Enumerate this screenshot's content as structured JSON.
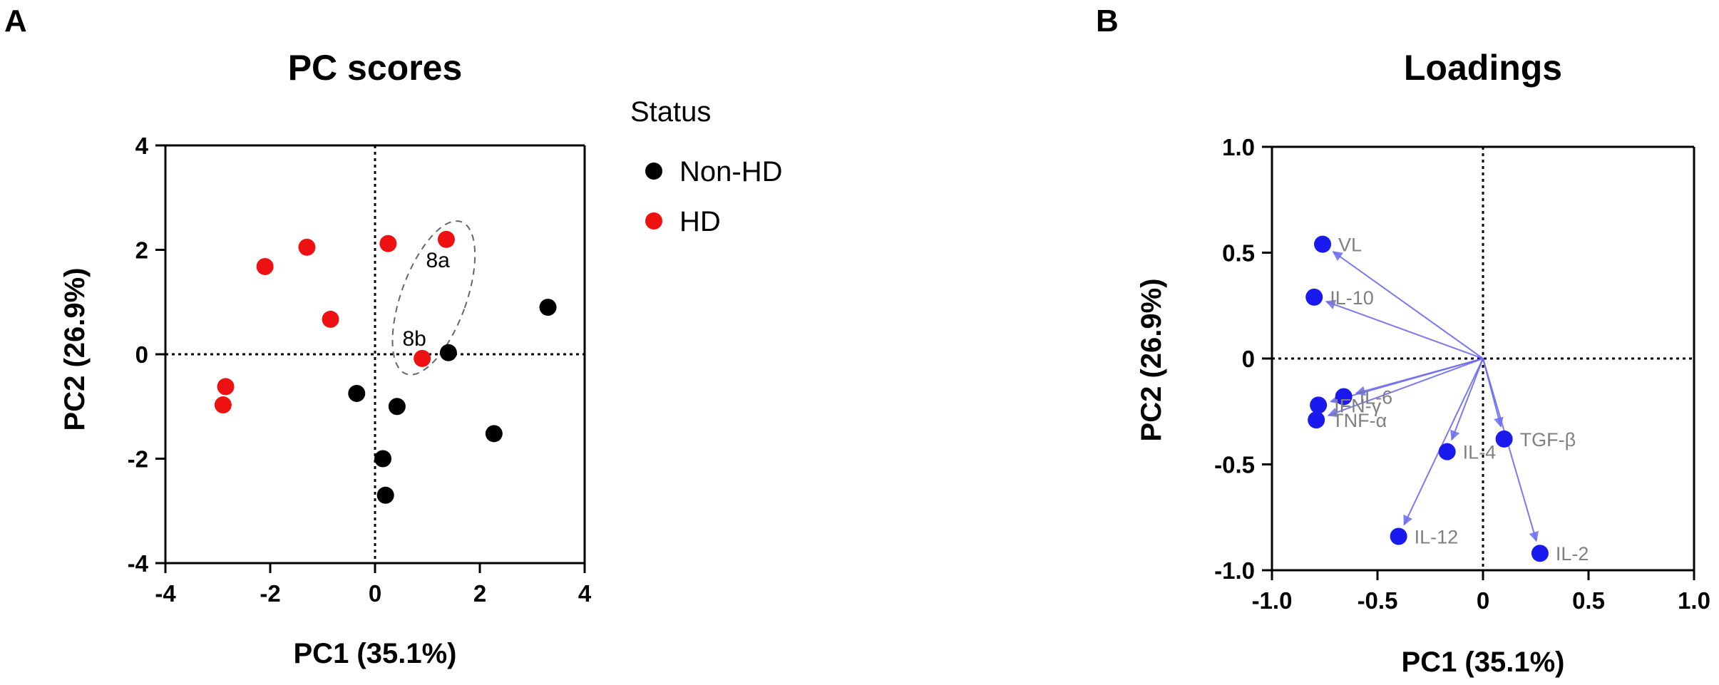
{
  "panels": {
    "a": "A",
    "b": "B"
  },
  "chart_data": [
    {
      "type": "scatter",
      "title": "PC scores",
      "xlabel": "PC1 (35.1%)",
      "ylabel": "PC2 (26.9%)",
      "xlim": [
        -4,
        4
      ],
      "ylim": [
        -4,
        4
      ],
      "xticks": [
        "-4",
        "-2",
        "0",
        "2",
        "4"
      ],
      "yticks": [
        "4",
        "2",
        "0",
        "-2",
        "-4"
      ],
      "legend": {
        "title": "Status",
        "position": "right",
        "entries": [
          {
            "label": "Non-HD",
            "color": "#000000"
          },
          {
            "label": "HD",
            "color": "#ee1111"
          }
        ]
      },
      "series": [
        {
          "name": "Non-HD",
          "color": "#000000",
          "x": [
            1.4,
            3.3,
            -0.35,
            0.42,
            2.27,
            0.15,
            0.2
          ],
          "y": [
            0.03,
            0.9,
            -0.75,
            -1.0,
            -1.52,
            -2.0,
            -2.7
          ]
        },
        {
          "name": "HD",
          "color": "#ee1111",
          "x": [
            -1.3,
            -2.1,
            0.25,
            1.36,
            -0.85,
            0.9,
            -2.85,
            -2.9
          ],
          "y": [
            2.05,
            1.68,
            2.12,
            2.2,
            0.67,
            -0.08,
            -0.62,
            -0.97
          ]
        }
      ],
      "annotations": [
        {
          "text": "8a",
          "x": 1.2,
          "y": 1.8
        },
        {
          "text": "8b",
          "x": 0.75,
          "y": 0.3
        }
      ],
      "ellipse": {
        "cx": 1.12,
        "cy": 1.08,
        "rx": 0.62,
        "ry": 1.55,
        "rotate_deg": 20
      }
    },
    {
      "type": "scatter",
      "title": "Loadings",
      "xlabel": "PC1 (35.1%)",
      "ylabel": "PC2 (26.9%)",
      "xlim": [
        -1.0,
        1.0
      ],
      "ylim": [
        -1.0,
        1.0
      ],
      "xticks": [
        "-1.0",
        "-0.5",
        "0",
        "0.5",
        "1.0"
      ],
      "yticks": [
        "1.0",
        "0.5",
        "0",
        "-0.5",
        "-1.0"
      ],
      "color": "#1a1aee",
      "points": [
        {
          "label": "VL",
          "x": -0.76,
          "y": 0.54
        },
        {
          "label": "IL-10",
          "x": -0.8,
          "y": 0.29
        },
        {
          "label": "IL-6",
          "x": -0.66,
          "y": -0.18
        },
        {
          "label": "IFN-γ",
          "x": -0.78,
          "y": -0.22
        },
        {
          "label": "TNF-α",
          "x": -0.79,
          "y": -0.29
        },
        {
          "label": "IL-4",
          "x": -0.17,
          "y": -0.44
        },
        {
          "label": "TGF-β",
          "x": 0.1,
          "y": -0.38
        },
        {
          "label": "IL-12",
          "x": -0.4,
          "y": -0.84
        },
        {
          "label": "IL-2",
          "x": 0.27,
          "y": -0.92
        }
      ]
    }
  ]
}
